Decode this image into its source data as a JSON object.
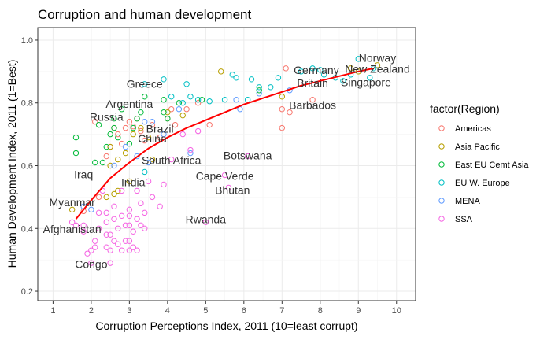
{
  "chart_data": {
    "type": "scatter",
    "title": "Corruption and human development",
    "xlabel": "Corruption Perceptions Index, 2011 (10=least corrupt)",
    "ylabel": "Human Development Index, 2011 (1=Best)",
    "xlim": [
      0.6,
      10.5
    ],
    "ylim": [
      0.17,
      1.04
    ],
    "xticks": [
      1,
      2,
      3,
      4,
      5,
      6,
      7,
      8,
      9,
      10
    ],
    "yticks": [
      0.2,
      0.4,
      0.6,
      0.8,
      1.0
    ],
    "ytick_labels": [
      "0.2",
      "0.4",
      "0.6",
      "0.8",
      "1.0"
    ],
    "grid": true,
    "legend": {
      "title": "factor(Region)",
      "position": "right",
      "entries": [
        {
          "name": "Americas",
          "color": "#F8766D"
        },
        {
          "name": "Asia Pacific",
          "color": "#B79F00"
        },
        {
          "name": "East EU Cemt Asia",
          "color": "#00BA38"
        },
        {
          "name": "EU W. Europe",
          "color": "#00BFC4"
        },
        {
          "name": "MENA",
          "color": "#619CFF"
        },
        {
          "name": "SSA",
          "color": "#F564E3"
        }
      ]
    },
    "trend_line": {
      "color": "#ff0000",
      "points": [
        [
          1.6,
          0.43
        ],
        [
          2.0,
          0.49
        ],
        [
          2.5,
          0.56
        ],
        [
          3.0,
          0.61
        ],
        [
          3.5,
          0.655
        ],
        [
          4.0,
          0.69
        ],
        [
          4.5,
          0.72
        ],
        [
          5.0,
          0.745
        ],
        [
          5.5,
          0.77
        ],
        [
          6.0,
          0.795
        ],
        [
          6.5,
          0.815
        ],
        [
          7.0,
          0.835
        ],
        [
          7.5,
          0.855
        ],
        [
          8.0,
          0.87
        ],
        [
          8.5,
          0.885
        ],
        [
          9.0,
          0.9
        ],
        [
          9.4,
          0.91
        ]
      ]
    },
    "series": [
      {
        "name": "Americas",
        "points": [
          [
            1.8,
            0.455
          ],
          [
            2.2,
            0.5
          ],
          [
            2.4,
            0.63
          ],
          [
            2.5,
            0.66
          ],
          [
            2.6,
            0.72
          ],
          [
            2.7,
            0.7
          ],
          [
            2.8,
            0.67
          ],
          [
            2.9,
            0.72
          ],
          [
            3.0,
            0.74
          ],
          [
            3.1,
            0.725
          ],
          [
            3.2,
            0.75
          ],
          [
            3.3,
            0.71
          ],
          [
            3.4,
            0.68
          ],
          [
            3.6,
            0.73
          ],
          [
            3.8,
            0.69
          ],
          [
            4.0,
            0.75
          ],
          [
            4.1,
            0.78
          ],
          [
            4.2,
            0.73
          ],
          [
            4.5,
            0.78
          ],
          [
            4.8,
            0.8
          ],
          [
            5.1,
            0.73
          ],
          [
            7.0,
            0.72
          ],
          [
            7.0,
            0.78
          ],
          [
            7.1,
            0.91
          ],
          [
            7.8,
            0.81
          ],
          [
            7.2,
            0.77
          ],
          [
            2.1,
            0.74
          ]
        ]
      },
      {
        "name": "Asia Pacific",
        "points": [
          [
            1.5,
            0.46
          ],
          [
            2.4,
            0.5
          ],
          [
            2.6,
            0.51
          ],
          [
            2.7,
            0.52
          ],
          [
            2.5,
            0.6
          ],
          [
            2.7,
            0.62
          ],
          [
            2.5,
            0.66
          ],
          [
            2.9,
            0.64
          ],
          [
            3.0,
            0.55
          ],
          [
            3.1,
            0.7
          ],
          [
            3.3,
            0.72
          ],
          [
            3.5,
            0.69
          ],
          [
            3.6,
            0.62
          ],
          [
            4.0,
            0.77
          ],
          [
            4.4,
            0.76
          ],
          [
            5.4,
            0.9
          ],
          [
            7.0,
            0.82
          ],
          [
            8.8,
            0.91
          ],
          [
            9.0,
            0.9
          ],
          [
            9.5,
            0.92
          ]
        ]
      },
      {
        "name": "East EU Cemt Asia",
        "points": [
          [
            1.6,
            0.64
          ],
          [
            1.6,
            0.69
          ],
          [
            2.1,
            0.61
          ],
          [
            2.2,
            0.73
          ],
          [
            2.3,
            0.61
          ],
          [
            2.4,
            0.66
          ],
          [
            2.5,
            0.7
          ],
          [
            2.6,
            0.72
          ],
          [
            2.6,
            0.75
          ],
          [
            2.7,
            0.69
          ],
          [
            2.8,
            0.78
          ],
          [
            3.0,
            0.67
          ],
          [
            3.1,
            0.72
          ],
          [
            3.2,
            0.75
          ],
          [
            3.3,
            0.77
          ],
          [
            3.4,
            0.82
          ],
          [
            3.9,
            0.81
          ],
          [
            3.9,
            0.77
          ],
          [
            4.0,
            0.75
          ],
          [
            4.3,
            0.8
          ],
          [
            4.9,
            0.81
          ],
          [
            6.4,
            0.84
          ]
        ]
      },
      {
        "name": "EU W. Europe",
        "points": [
          [
            3.4,
            0.58
          ],
          [
            3.4,
            0.86
          ],
          [
            3.9,
            0.875
          ],
          [
            4.1,
            0.82
          ],
          [
            4.4,
            0.8
          ],
          [
            4.5,
            0.86
          ],
          [
            4.6,
            0.82
          ],
          [
            4.8,
            0.81
          ],
          [
            5.1,
            0.805
          ],
          [
            5.5,
            0.81
          ],
          [
            5.7,
            0.89
          ],
          [
            5.8,
            0.88
          ],
          [
            6.1,
            0.81
          ],
          [
            6.2,
            0.875
          ],
          [
            6.4,
            0.85
          ],
          [
            6.7,
            0.85
          ],
          [
            6.9,
            0.88
          ],
          [
            7.5,
            0.9
          ],
          [
            7.8,
            0.91
          ],
          [
            8.0,
            0.905
          ],
          [
            8.1,
            0.89
          ],
          [
            8.6,
            0.87
          ],
          [
            8.8,
            0.89
          ],
          [
            9.0,
            0.94
          ],
          [
            9.3,
            0.88
          ],
          [
            9.4,
            0.91
          ],
          [
            8.4,
            0.88
          ]
        ]
      },
      {
        "name": "MENA",
        "points": [
          [
            1.8,
            0.47
          ],
          [
            2.0,
            0.46
          ],
          [
            2.6,
            0.6
          ],
          [
            2.9,
            0.66
          ],
          [
            3.2,
            0.63
          ],
          [
            3.4,
            0.74
          ],
          [
            3.5,
            0.61
          ],
          [
            3.6,
            0.74
          ],
          [
            3.9,
            0.7
          ],
          [
            4.3,
            0.78
          ],
          [
            4.6,
            0.64
          ],
          [
            5.8,
            0.81
          ],
          [
            5.9,
            0.78
          ],
          [
            6.4,
            0.83
          ],
          [
            7.2,
            0.84
          ]
        ]
      },
      {
        "name": "SSA",
        "points": [
          [
            1.5,
            0.42
          ],
          [
            1.6,
            0.41
          ],
          [
            1.8,
            0.41
          ],
          [
            1.8,
            0.39
          ],
          [
            1.9,
            0.32
          ],
          [
            2.0,
            0.33
          ],
          [
            2.0,
            0.29
          ],
          [
            2.1,
            0.34
          ],
          [
            2.1,
            0.36
          ],
          [
            2.2,
            0.4
          ],
          [
            2.2,
            0.45
          ],
          [
            2.3,
            0.52
          ],
          [
            2.4,
            0.45
          ],
          [
            2.4,
            0.42
          ],
          [
            2.4,
            0.38
          ],
          [
            2.4,
            0.34
          ],
          [
            2.5,
            0.38
          ],
          [
            2.5,
            0.33
          ],
          [
            2.5,
            0.29
          ],
          [
            2.6,
            0.47
          ],
          [
            2.6,
            0.43
          ],
          [
            2.6,
            0.36
          ],
          [
            2.7,
            0.4
          ],
          [
            2.7,
            0.35
          ],
          [
            2.8,
            0.44
          ],
          [
            2.8,
            0.33
          ],
          [
            2.9,
            0.41
          ],
          [
            2.9,
            0.36
          ],
          [
            3.0,
            0.46
          ],
          [
            3.0,
            0.44
          ],
          [
            3.0,
            0.41
          ],
          [
            3.0,
            0.36
          ],
          [
            3.0,
            0.33
          ],
          [
            3.1,
            0.39
          ],
          [
            3.1,
            0.34
          ],
          [
            3.2,
            0.43
          ],
          [
            3.2,
            0.52
          ],
          [
            3.2,
            0.33
          ],
          [
            3.3,
            0.41
          ],
          [
            3.4,
            0.45
          ],
          [
            3.4,
            0.4
          ],
          [
            3.5,
            0.55
          ],
          [
            3.6,
            0.5
          ],
          [
            3.8,
            0.47
          ],
          [
            3.9,
            0.54
          ],
          [
            4.1,
            0.62
          ],
          [
            4.4,
            0.7
          ],
          [
            4.6,
            0.65
          ],
          [
            4.8,
            0.71
          ],
          [
            5.0,
            0.42
          ],
          [
            5.5,
            0.57
          ],
          [
            5.6,
            0.53
          ],
          [
            6.1,
            0.63
          ],
          [
            3.3,
            0.48
          ],
          [
            2.8,
            0.52
          ]
        ]
      }
    ],
    "annotations": [
      {
        "text": "Norway",
        "x": 9.5,
        "y": 0.943
      },
      {
        "text": "New Zealand",
        "x": 9.5,
        "y": 0.908
      },
      {
        "text": "Germany",
        "x": 7.9,
        "y": 0.905
      },
      {
        "text": "Britain",
        "x": 7.8,
        "y": 0.863
      },
      {
        "text": "Singapore",
        "x": 9.2,
        "y": 0.866
      },
      {
        "text": "Barbados",
        "x": 7.8,
        "y": 0.793
      },
      {
        "text": "Greece",
        "x": 3.4,
        "y": 0.861
      },
      {
        "text": "Argentina",
        "x": 3.0,
        "y": 0.797
      },
      {
        "text": "Russia",
        "x": 2.4,
        "y": 0.755
      },
      {
        "text": "Brazil",
        "x": 3.8,
        "y": 0.718
      },
      {
        "text": "China",
        "x": 3.6,
        "y": 0.687
      },
      {
        "text": "South Africa",
        "x": 4.1,
        "y": 0.617
      },
      {
        "text": "Botswana",
        "x": 6.1,
        "y": 0.633
      },
      {
        "text": "Iraq",
        "x": 1.8,
        "y": 0.573
      },
      {
        "text": "India",
        "x": 3.1,
        "y": 0.547
      },
      {
        "text": "Cape Verde",
        "x": 5.5,
        "y": 0.568
      },
      {
        "text": "Bhutan",
        "x": 5.7,
        "y": 0.522
      },
      {
        "text": "Myanmar",
        "x": 1.5,
        "y": 0.483
      },
      {
        "text": "Rwanda",
        "x": 5.0,
        "y": 0.429
      },
      {
        "text": "Afghanistan",
        "x": 1.5,
        "y": 0.398
      },
      {
        "text": "Congo",
        "x": 2.0,
        "y": 0.286
      }
    ]
  }
}
